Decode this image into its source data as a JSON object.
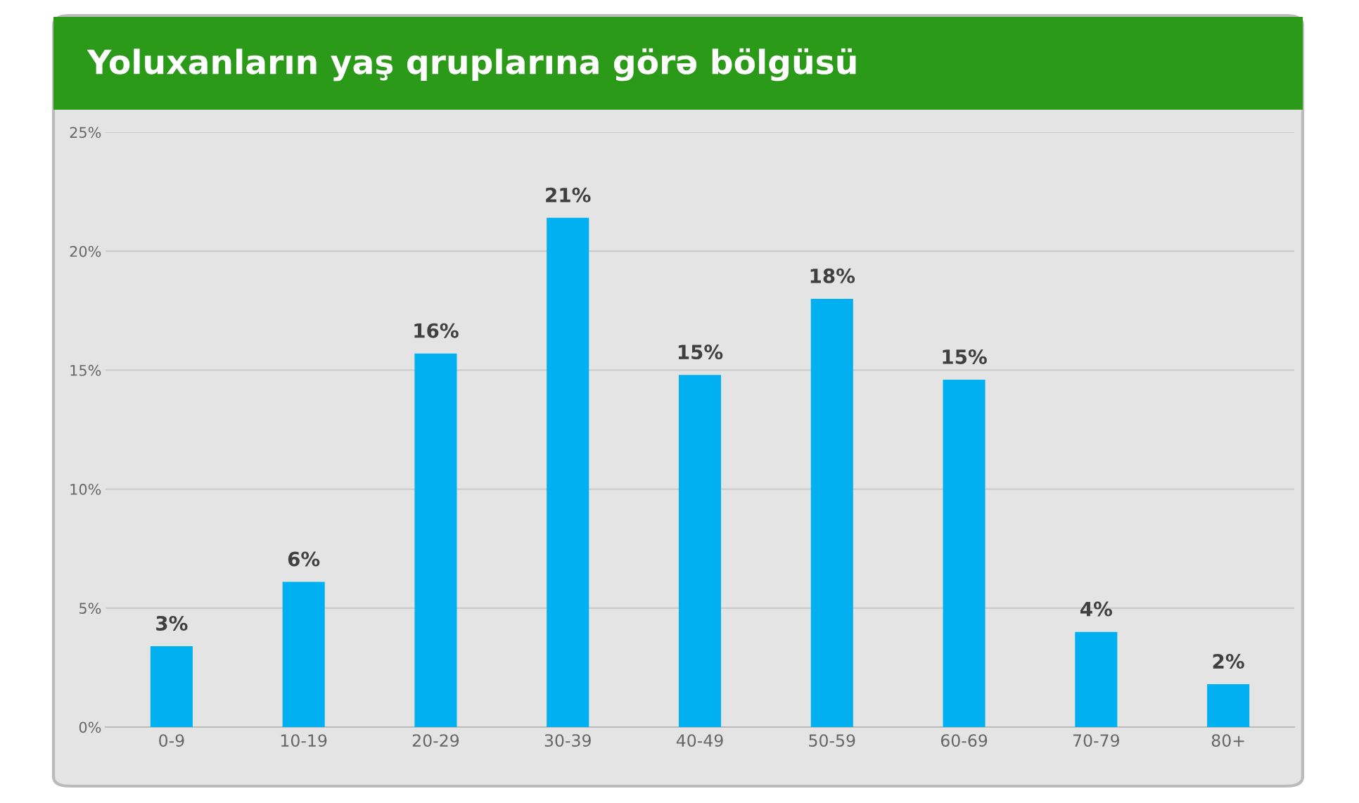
{
  "chart_data": {
    "type": "bar",
    "title": "Yoluxanların yaş qruplarına görə bölgüsü",
    "categories": [
      "0-9",
      "10-19",
      "20-29",
      "30-39",
      "40-49",
      "50-59",
      "60-69",
      "70-79",
      "80+"
    ],
    "values": [
      3.4,
      6.1,
      15.7,
      21.4,
      14.8,
      18.0,
      14.6,
      4.0,
      1.8
    ],
    "value_labels": [
      "3%",
      "6%",
      "16%",
      "21%",
      "15%",
      "18%",
      "15%",
      "4%",
      "2%"
    ],
    "color": "#00b0f0",
    "ylim": [
      0,
      25
    ],
    "yticks": [
      {
        "value": 0,
        "label": "0%"
      },
      {
        "value": 5,
        "label": "5%"
      },
      {
        "value": 10,
        "label": "10%"
      },
      {
        "value": 15,
        "label": "15%"
      },
      {
        "value": 20,
        "label": "20%"
      },
      {
        "value": 25,
        "label": "25%"
      }
    ],
    "grid": "y"
  }
}
